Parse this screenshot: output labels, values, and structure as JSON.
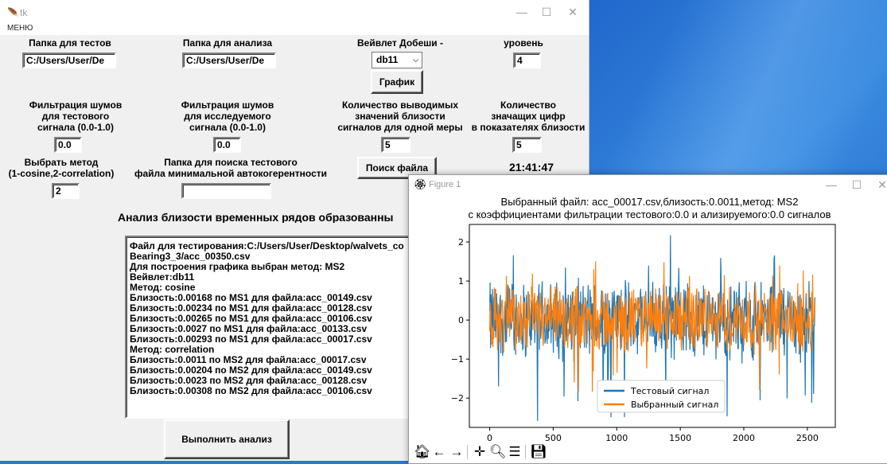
{
  "tk_window": {
    "title": "tk",
    "menu": "МЕНЮ",
    "controls": {
      "minimize": "—",
      "maximize": "☐",
      "close": "✕"
    },
    "tests_folder": {
      "label": "Папка для тестов",
      "value": "C:/Users/User/De"
    },
    "analysis_folder": {
      "label": "Папка для анализа",
      "value": "C:/Users/User/De"
    },
    "wavelet": {
      "label": "Вейвлет Добеши -",
      "selected": "db11",
      "chart_button": "График"
    },
    "level": {
      "label": "уровень",
      "value": "4"
    },
    "noise_test": {
      "label_lines": [
        "Фильтрация шумов",
        "для тестового",
        "сигнала (0.0-1.0)"
      ],
      "value": "0.0"
    },
    "noise_investigated": {
      "label_lines": [
        "Фильтрация шумов",
        "для исследуемого",
        "сигнала (0.0-1.0)"
      ],
      "value": "0.0"
    },
    "output_count": {
      "label_lines": [
        "Количество выводимых",
        "значений близости",
        "сигналов для одной меры"
      ],
      "value": "5"
    },
    "sig_digits": {
      "label_lines": [
        "Количество",
        "значащих цифр",
        "в показателях близости"
      ],
      "value": "5"
    },
    "method": {
      "label_lines": [
        "Выбрать метод",
        "(1-cosine,2-correlation)"
      ],
      "value": "2"
    },
    "search_folder": {
      "label_lines": [
        "Папка для поиска тестового",
        "файла минимальной автокогерентности"
      ],
      "value": ""
    },
    "search_button": "Поиск файла",
    "clock": "21:41:47",
    "heading": "Анализ близости временных рядов образованны",
    "results_lines": [
      "Файл для тестирования:C:/Users/User/Desktop/walvets_co",
      "Bearing3_3/acc_00350.csv",
      "Для построения графика выбран метод: MS2",
      "Вейвлет:db11",
      "Метод: cosine",
      "Близость:0.00168 по MS1 для файла:acc_00149.csv",
      "Близость:0.00234 по MS1 для файла:acc_00128.csv",
      "Близость:0.00265 по MS1 для файла:acc_00106.csv",
      "Близость:0.0027 по MS1 для файла:acc_00133.csv",
      "Близость:0.00293 по MS1 для файла:acc_00017.csv",
      "Метод: correlation",
      "Близость:0.0011 по MS2 для файла:acc_00017.csv",
      "Близость:0.00204 по MS2 для файла:acc_00149.csv",
      "Близость:0.0023 по MS2 для файла:acc_00128.csv",
      "Близость:0.00308 по MS2 для файла:acc_00106.csv"
    ],
    "run_button": "Выполнить анализ"
  },
  "figure_window": {
    "title": "Figure 1",
    "icon": "feather-icon",
    "plot_title_line1": "Выбранный файл: acc_00017.csv,близость:0.0011,метод: MS2",
    "plot_title_line2": "с коэффициентами фильтрации тестового:0.0 и ализируемого:0.0 сигналов",
    "toolbar_icons": [
      "home-icon",
      "back-arrow-icon",
      "forward-arrow-icon",
      "pan-icon",
      "zoom-icon",
      "configure-subplots-icon",
      "save-icon"
    ]
  },
  "chart_data": {
    "type": "line",
    "title": "Выбранный файл: acc_00017.csv,близость:0.0011,метод: MS2\nс коэффициентами фильтрации тестового:0.0 и ализируемого:0.0 сигналов",
    "xlabel": "",
    "ylabel": "",
    "xlim": [
      -160,
      2720
    ],
    "ylim": [
      -2.75,
      2.45
    ],
    "x_ticks": [
      "0",
      "500",
      "1000",
      "1500",
      "2000",
      "2500"
    ],
    "y_ticks": [
      "−2",
      "−1",
      "0",
      "1",
      "2"
    ],
    "x_range": [
      0,
      2560
    ],
    "series": [
      {
        "name": "Тестовый сигнал",
        "color": "#1f77b4",
        "approx_amplitude_typical": 0.9,
        "approx_min": -2.6,
        "approx_max": 2.2
      },
      {
        "name": "Выбранный сигнал",
        "color": "#ff7f0e",
        "approx_amplitude_typical": 0.75,
        "approx_min": -1.85,
        "approx_max": 1.7
      }
    ],
    "legend_position": "lower-center",
    "grid": false
  }
}
